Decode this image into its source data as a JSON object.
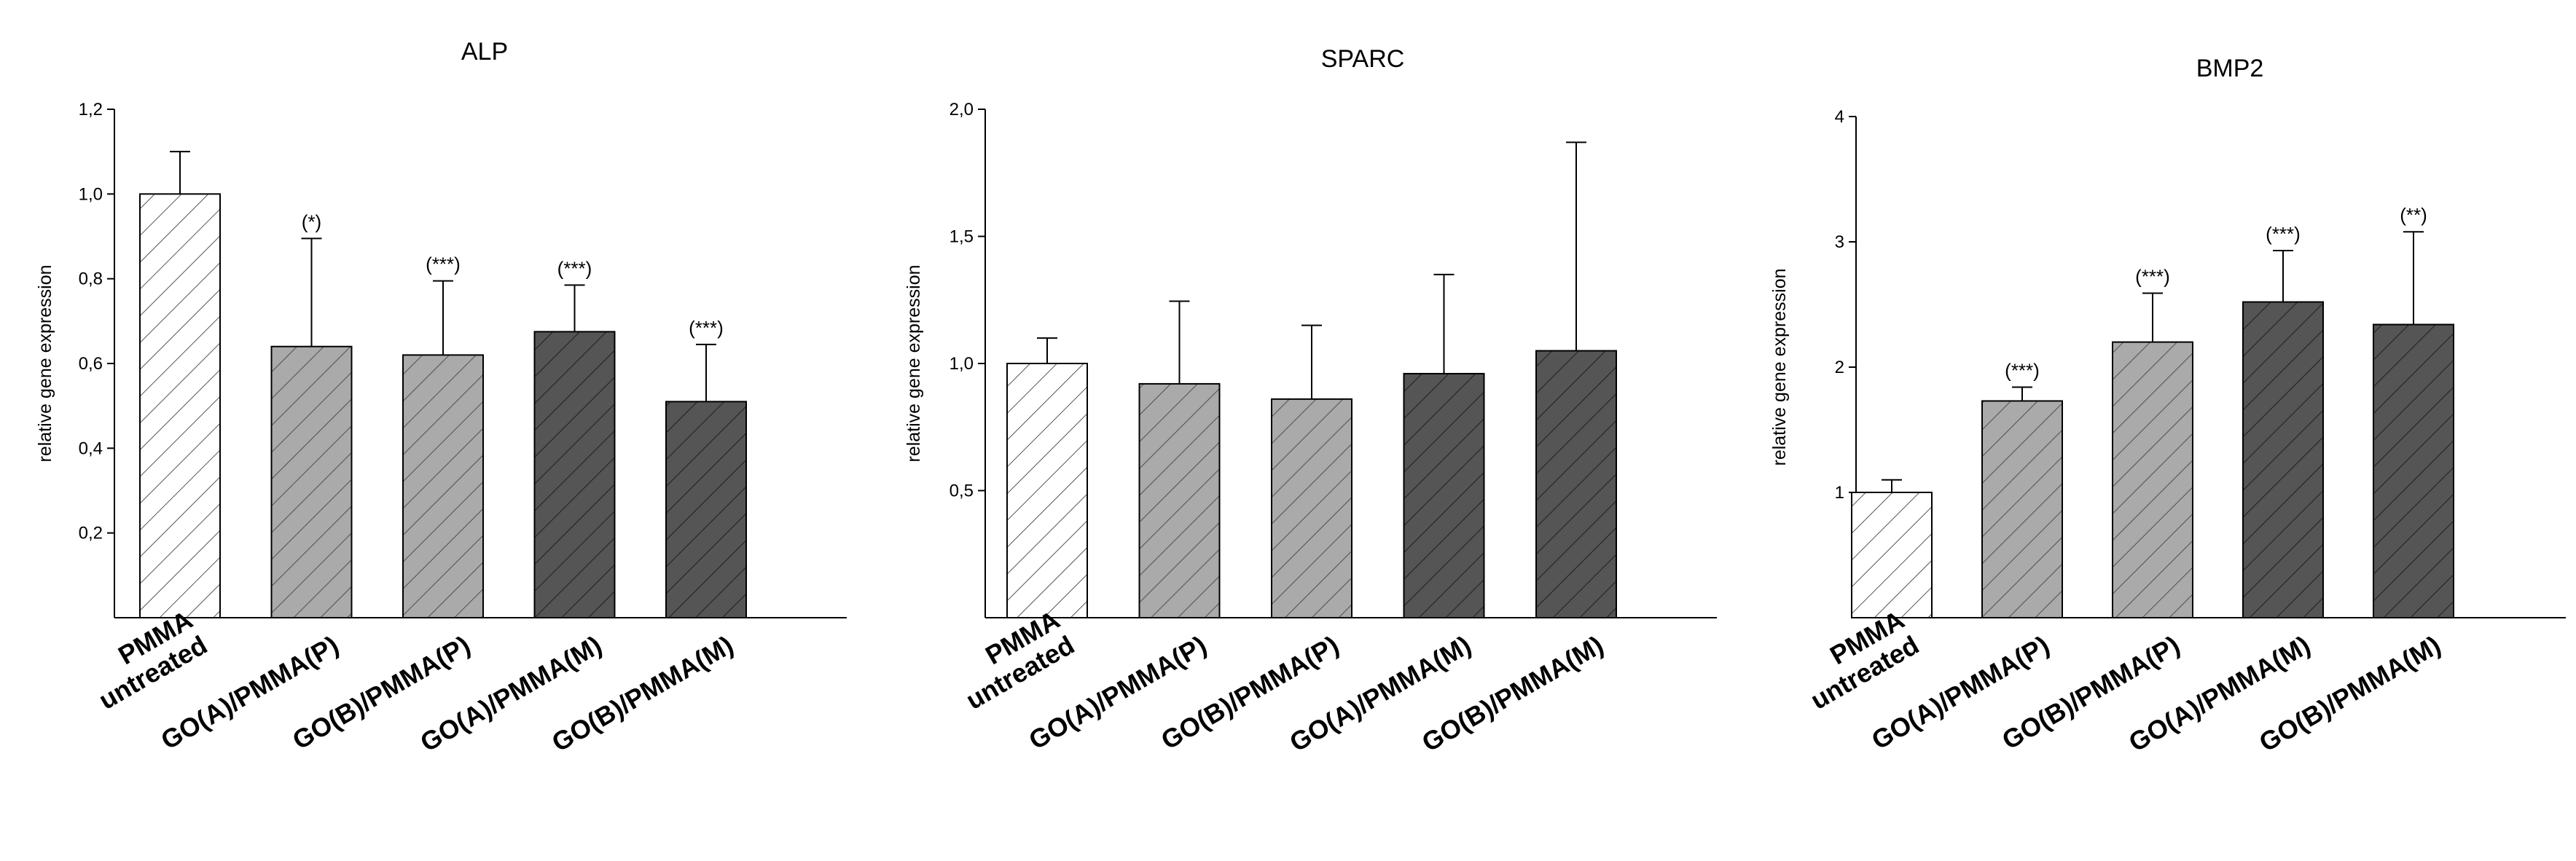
{
  "colors": {
    "untreated_fill": "#ffffff",
    "type_P_fill": "#aaaaaa",
    "type_M_fill": "#555555",
    "hatch_light": "#555555",
    "hatch_dark": "#222222",
    "stroke": "#000000"
  },
  "chart_data": [
    {
      "type": "bar",
      "title": "ALP",
      "ylabel": "relative gene expression",
      "ylim": [
        0,
        1.2
      ],
      "yticks": [
        0.2,
        0.4,
        0.6,
        0.8,
        1.0,
        1.2
      ],
      "ytick_labels": [
        "0,2",
        "0,4",
        "0,6",
        "0,8",
        "1,0",
        "1,2"
      ],
      "categories": [
        [
          "PMMA",
          "untreated"
        ],
        [
          "GO(A)/PMMA(P)"
        ],
        [
          "GO(B)/PMMA(P)"
        ],
        [
          "GO(A)/PMMA(M)"
        ],
        [
          "GO(B)/PMMA(M)"
        ]
      ],
      "values": [
        1.0,
        0.64,
        0.62,
        0.675,
        0.51
      ],
      "errors": [
        0.1,
        0.255,
        0.175,
        0.11,
        0.135
      ],
      "significance": [
        "",
        "(*)",
        "(***)",
        "(***)",
        "(***)"
      ]
    },
    {
      "type": "bar",
      "title": "SPARC",
      "ylabel": "relative gene expression",
      "ylim": [
        0,
        2.0
      ],
      "yticks": [
        0.5,
        1.0,
        1.5,
        2.0
      ],
      "ytick_labels": [
        "0,5",
        "1,0",
        "1,5",
        "2,0"
      ],
      "categories": [
        [
          "PMMA",
          "untreated"
        ],
        [
          "GO(A)/PMMA(P)"
        ],
        [
          "GO(B)/PMMA(P)"
        ],
        [
          "GO(A)/PMMA(M)"
        ],
        [
          "GO(B)/PMMA(M)"
        ]
      ],
      "values": [
        1.0,
        0.92,
        0.86,
        0.96,
        1.05
      ],
      "errors": [
        0.1,
        0.325,
        0.29,
        0.39,
        0.82
      ],
      "significance": [
        "",
        "",
        "",
        "",
        ""
      ]
    },
    {
      "type": "bar",
      "title": "BMP2",
      "ylabel": "relative gene expression",
      "ylim": [
        0,
        4
      ],
      "yticks": [
        1,
        2,
        3,
        4
      ],
      "ytick_labels": [
        "1",
        "2",
        "3",
        "4"
      ],
      "categories": [
        [
          "PMMA",
          "untreated"
        ],
        [
          "GO(A)/PMMA(P)"
        ],
        [
          "GO(B)/PMMA(P)"
        ],
        [
          "GO(A)/PMMA(M)"
        ],
        [
          "GO(B)/PMMA(M)"
        ]
      ],
      "values": [
        1.0,
        1.73,
        2.2,
        2.52,
        2.34
      ],
      "errors": [
        0.1,
        0.11,
        0.39,
        0.41,
        0.74
      ],
      "significance": [
        "",
        "(***)",
        "(***)",
        "(***)",
        "(**)"
      ]
    }
  ]
}
